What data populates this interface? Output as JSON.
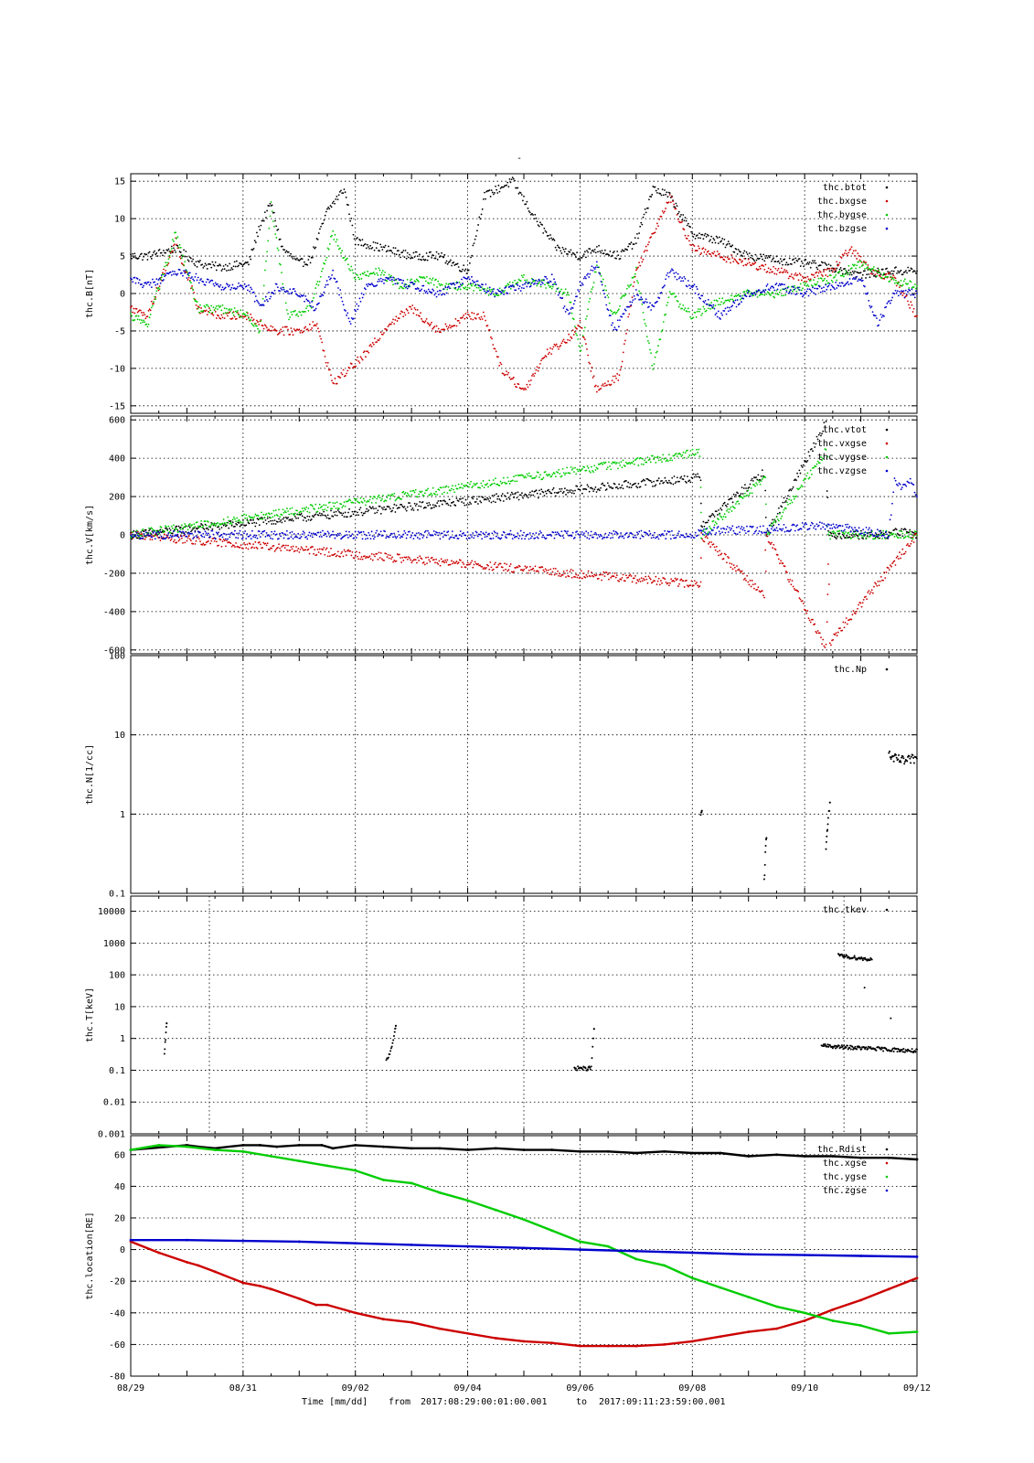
{
  "figure": {
    "title_mark": "-",
    "footer": {
      "axis_label": "Time [mm/dd]",
      "from_label": "from",
      "from": "2017:08:29:00:01:00.001",
      "to_label": "to",
      "to": "2017:09:11:23:59:00.001"
    }
  },
  "chart_data": [
    {
      "type": "scatter",
      "ylabel": "thc.B[nT]",
      "ylim": [
        -16,
        16
      ],
      "yticks": [
        -15,
        -10,
        -5,
        0,
        5,
        10,
        15
      ],
      "ytick_labels": [
        "-15",
        "-10",
        "-5",
        "0",
        "5",
        "10",
        "15"
      ],
      "yscale": "linear",
      "grid": true,
      "legend_position": "top-right",
      "x_range_days": [
        0,
        14
      ],
      "x_gridlines_days": [
        2,
        4,
        6,
        8,
        10,
        12
      ],
      "series": [
        {
          "name": "thc.btot",
          "color": "#000000",
          "x": [
            0,
            0.3,
            0.8,
            1.2,
            1.6,
            2.1,
            2.3,
            2.5,
            2.7,
            3.0,
            3.2,
            3.5,
            3.8,
            4.0,
            4.5,
            5.0,
            5.5,
            6.0,
            6.3,
            6.8,
            7.2,
            7.6,
            8.0,
            8.3,
            8.7,
            9.0,
            9.3,
            9.6,
            10.0,
            10.5,
            11.0,
            11.5,
            12.0,
            12.5,
            13.0,
            13.5,
            14.0
          ],
          "y": [
            5,
            5,
            6,
            4,
            3.5,
            4,
            9,
            12,
            6,
            4,
            4.5,
            11,
            14,
            7,
            6,
            5,
            5,
            3,
            13,
            15,
            10,
            6,
            5,
            6,
            5,
            7,
            14,
            13,
            8,
            7,
            5,
            4.5,
            4,
            3.5,
            2.5,
            3,
            3
          ]
        },
        {
          "name": "thc.bxgse",
          "color": "#cc0000",
          "x": [
            0,
            0.3,
            0.8,
            1.2,
            1.6,
            2.1,
            2.3,
            2.6,
            3.0,
            3.3,
            3.6,
            3.9,
            4.2,
            4.6,
            5.0,
            5.5,
            6.0,
            6.3,
            6.6,
            7.0,
            7.4,
            7.8,
            8.0,
            8.3,
            8.7,
            9.0,
            9.3,
            9.6,
            10.0,
            10.5,
            11.0,
            11.5,
            12.0,
            12.5,
            12.8,
            13.2,
            13.6,
            14.0
          ],
          "y": [
            -2,
            -3,
            7,
            -2,
            -3,
            -3,
            -4,
            -5,
            -5,
            -4,
            -12,
            -10,
            -8,
            -4,
            -2,
            -5,
            -3,
            -3,
            -10,
            -13,
            -8,
            -6,
            -4,
            -13,
            -11,
            3,
            8,
            13,
            6,
            5,
            4,
            3,
            2,
            3,
            6,
            3,
            2,
            -3
          ]
        },
        {
          "name": "thc.bygse",
          "color": "#00cc00",
          "x": [
            0,
            0.3,
            0.8,
            1.2,
            1.6,
            2.1,
            2.3,
            2.5,
            2.8,
            3.2,
            3.6,
            4.0,
            4.4,
            4.8,
            5.2,
            5.6,
            6.0,
            6.5,
            7.0,
            7.5,
            7.8,
            8.0,
            8.3,
            8.6,
            9.0,
            9.3,
            9.6,
            10.0,
            10.5,
            11.0,
            11.5,
            12.0,
            12.5,
            13.0,
            13.5,
            14.0
          ],
          "y": [
            -3,
            -4,
            8,
            -2,
            -2,
            -3,
            -5,
            12,
            -3,
            -2,
            8,
            2,
            3,
            1,
            2,
            1,
            1,
            0,
            2,
            1,
            0,
            -8,
            4,
            -3,
            3,
            -10,
            0,
            -3,
            -1,
            0,
            0,
            1,
            2,
            4,
            2,
            1
          ]
        },
        {
          "name": "thc.bzgse",
          "color": "#0000cc",
          "x": [
            0,
            0.3,
            0.8,
            1.2,
            1.6,
            2.1,
            2.3,
            2.6,
            3.0,
            3.3,
            3.6,
            3.9,
            4.2,
            4.6,
            5.0,
            5.5,
            6.0,
            6.5,
            7.0,
            7.5,
            7.8,
            8.0,
            8.3,
            8.6,
            9.0,
            9.3,
            9.6,
            10.0,
            10.5,
            11.0,
            11.5,
            12.0,
            12.5,
            13.0,
            13.3,
            13.6,
            14.0
          ],
          "y": [
            2,
            1,
            3,
            2,
            1,
            1,
            -2,
            1,
            0,
            -2,
            3,
            -4,
            1,
            2,
            1,
            0,
            2,
            0,
            1,
            2,
            -3,
            1,
            4,
            -5,
            0,
            -2,
            3,
            1,
            -3,
            0,
            1,
            0,
            1,
            2,
            -4,
            0,
            0
          ]
        }
      ]
    },
    {
      "type": "scatter",
      "ylabel": "thc.V[km/s]",
      "ylim": [
        -620,
        620
      ],
      "yticks": [
        -600,
        -400,
        -200,
        0,
        200,
        400,
        600
      ],
      "ytick_labels": [
        "-600",
        "-400",
        "-200",
        "0",
        "200",
        "400",
        "600"
      ],
      "yscale": "linear",
      "grid": true,
      "legend_position": "top-right",
      "x_range_days": [
        0,
        14
      ],
      "x_gridlines_days": [
        2,
        4,
        6,
        8,
        10,
        12
      ],
      "series": [
        {
          "name": "thc.vtot",
          "color": "#000000",
          "x": [
            0,
            10.15,
            10.16,
            11.3,
            11.32,
            12.4,
            12.42,
            13.5,
            13.6,
            13.8,
            14.0
          ],
          "y": [
            0,
            300,
            50,
            330,
            0,
            600,
            0,
            0,
            20,
            10,
            0
          ]
        },
        {
          "name": "thc.vxgse",
          "color": "#cc0000",
          "x": [
            0,
            10.15,
            10.16,
            11.3,
            11.32,
            12.4,
            12.42,
            12.45,
            14.0
          ],
          "y": [
            0,
            -260,
            0,
            -320,
            0,
            -600,
            0,
            -560,
            0
          ]
        },
        {
          "name": "thc.vygse",
          "color": "#00cc00",
          "x": [
            0,
            10.15,
            10.16,
            11.3,
            11.32,
            12.4,
            12.42,
            14.0
          ],
          "y": [
            0,
            430,
            0,
            300,
            0,
            450,
            0,
            0
          ]
        },
        {
          "name": "thc.vzgse",
          "color": "#0000cc",
          "x": [
            0,
            10.0,
            10.15,
            11.3,
            12.4,
            13.5,
            13.6,
            13.7,
            13.9,
            14.0
          ],
          "y": [
            0,
            0,
            20,
            30,
            50,
            0,
            300,
            250,
            280,
            200
          ]
        }
      ]
    },
    {
      "type": "scatter",
      "ylabel": "thc.N[1/cc]",
      "ylim": [
        0.1,
        100
      ],
      "yticks": [
        0.1,
        1,
        10,
        100
      ],
      "ytick_labels": [
        "0.1",
        "1",
        "10",
        "100"
      ],
      "yscale": "log",
      "grid": true,
      "legend_position": "top-right",
      "x_range_days": [
        0,
        14
      ],
      "x_gridlines_days": [
        2,
        4,
        6,
        8,
        10,
        12
      ],
      "series": [
        {
          "name": "thc.Np",
          "color": "#000000",
          "x": [
            10.15,
            10.17,
            11.28,
            11.3,
            11.32,
            12.38,
            12.4,
            12.42,
            12.45,
            13.5,
            13.6,
            13.7,
            13.8,
            13.9,
            14.0
          ],
          "y": [
            0.9,
            1.1,
            0.15,
            0.3,
            0.5,
            0.35,
            0.6,
            1.0,
            1.4,
            5.5,
            5.0,
            4.8,
            4.6,
            4.9,
            5.0
          ]
        }
      ]
    },
    {
      "type": "scatter",
      "ylabel": "thc.T[keV]",
      "ylim": [
        0.001,
        30000
      ],
      "yticks": [
        0.001,
        0.01,
        0.1,
        1,
        10,
        100,
        1000,
        10000
      ],
      "ytick_labels": [
        "0.001",
        "0.01",
        "0.1",
        "1",
        "10",
        "100",
        "1000",
        "10000"
      ],
      "yscale": "log",
      "grid": true,
      "legend_position": "top-right",
      "x_range_days": [
        0,
        14
      ],
      "x_gridlines_days": [
        1.4,
        4.2,
        7.0,
        10.0,
        12.7
      ],
      "series": [
        {
          "name": "thc.tkev",
          "color": "#000000",
          "x": [
            0.6,
            0.62,
            0.64,
            4.55,
            4.6,
            4.65,
            4.7,
            4.72,
            7.9,
            8.0,
            8.1,
            8.2,
            8.25,
            12.3,
            12.5,
            13.0,
            13.5,
            14.0,
            12.6,
            13.2
          ],
          "y": [
            0.3,
            1.0,
            3.0,
            0.2,
            0.3,
            0.6,
            1.5,
            2.5,
            0.11,
            0.12,
            0.11,
            0.12,
            2.0,
            0.6,
            0.55,
            0.5,
            0.45,
            0.4,
            400,
            300
          ]
        }
      ]
    },
    {
      "type": "line",
      "ylabel": "thc.location[RE]",
      "ylim": [
        -80,
        72
      ],
      "yticks": [
        -80,
        -60,
        -40,
        -20,
        0,
        20,
        40,
        60
      ],
      "ytick_labels": [
        "-80",
        "-60",
        "-40",
        "-20",
        "0",
        "20",
        "40",
        "60"
      ],
      "yscale": "linear",
      "grid": true,
      "legend_position": "top-right",
      "x_range_days": [
        0,
        14
      ],
      "x_gridlines_days": [
        2,
        4,
        6,
        8,
        10,
        12
      ],
      "x_tick_labels": [
        "08/29",
        "08/31",
        "09/02",
        "09/04",
        "09/06",
        "09/08",
        "09/10",
        "09/12"
      ],
      "x_tick_positions_days": [
        0,
        2,
        4,
        6,
        8,
        10,
        12,
        14
      ],
      "series": [
        {
          "name": "thc.Rdist",
          "color": "#000000",
          "x": [
            0,
            1,
            1.2,
            1.5,
            2,
            2.3,
            2.6,
            3,
            3.4,
            3.6,
            4,
            4.5,
            5,
            5.5,
            6,
            6.5,
            7,
            7.5,
            8,
            8.5,
            9,
            9.5,
            10,
            10.5,
            11,
            11.5,
            12,
            12.5,
            13,
            13.5,
            14
          ],
          "y": [
            63,
            66,
            65,
            64,
            66,
            66,
            65,
            66,
            66,
            64,
            66,
            65,
            64,
            64,
            63,
            64,
            63,
            63,
            62,
            62,
            61,
            62,
            61,
            61,
            59,
            60,
            59,
            59,
            58,
            58,
            57
          ]
        },
        {
          "name": "thc.xgse",
          "color": "#cc0000",
          "x": [
            0,
            0.5,
            1,
            1.2,
            1.5,
            2,
            2.3,
            2.5,
            3,
            3.3,
            3.5,
            4,
            4.5,
            5,
            5.5,
            6,
            6.5,
            7,
            7.5,
            8,
            8.5,
            9,
            9.5,
            10,
            10.5,
            11,
            11.5,
            12,
            12.5,
            13,
            13.5,
            14
          ],
          "y": [
            5,
            -2,
            -8,
            -10,
            -14,
            -21,
            -23,
            -25,
            -31,
            -35,
            -35,
            -40,
            -44,
            -46,
            -50,
            -53,
            -56,
            -58,
            -59,
            -61,
            -61,
            -61,
            -60,
            -58,
            -55,
            -52,
            -50,
            -45,
            -38,
            -32,
            -25,
            -18
          ]
        },
        {
          "name": "thc.ygse",
          "color": "#00cc00",
          "x": [
            0,
            0.5,
            1,
            1.5,
            2,
            2.5,
            3,
            3.5,
            4,
            4.5,
            5,
            5.5,
            6,
            6.5,
            7,
            7.5,
            8,
            8.5,
            9,
            9.5,
            10,
            10.5,
            11,
            11.5,
            12,
            12.5,
            13,
            13.5,
            14
          ],
          "y": [
            63,
            66,
            65,
            63,
            62,
            59,
            56,
            53,
            50,
            44,
            42,
            36,
            31,
            25,
            19,
            12,
            5,
            2,
            -6,
            -10,
            -18,
            -24,
            -30,
            -36,
            -40,
            -45,
            -48,
            -53,
            -52
          ]
        },
        {
          "name": "thc.zgse",
          "color": "#0000cc",
          "x": [
            0,
            1,
            2,
            3,
            4,
            5,
            6,
            7,
            8,
            9,
            10,
            11,
            12,
            13,
            14
          ],
          "y": [
            6,
            6,
            5.5,
            5,
            4,
            3,
            2,
            1,
            0,
            -1,
            -2,
            -3,
            -3.5,
            -4,
            -4.5
          ]
        }
      ]
    }
  ]
}
